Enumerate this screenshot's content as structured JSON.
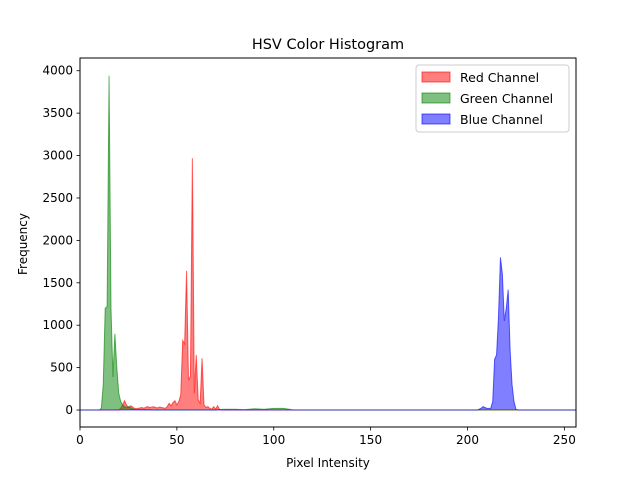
{
  "chart_data": {
    "type": "area",
    "title": "HSV Color Histogram",
    "xlabel": "Pixel Intensity",
    "ylabel": "Frequency",
    "xlim": [
      0,
      256
    ],
    "ylim": [
      -200,
      4150
    ],
    "xticks": [
      0,
      50,
      100,
      150,
      200,
      250
    ],
    "yticks": [
      0,
      500,
      1000,
      1500,
      2000,
      2500,
      3000,
      3500,
      4000
    ],
    "legend_position": "top-right",
    "series": [
      {
        "name": "Red Channel",
        "color": "#ff0000",
        "points": [
          [
            0,
            0
          ],
          [
            20,
            0
          ],
          [
            21,
            20
          ],
          [
            22,
            60
          ],
          [
            23,
            110
          ],
          [
            24,
            60
          ],
          [
            25,
            30
          ],
          [
            26,
            50
          ],
          [
            27,
            40
          ],
          [
            28,
            20
          ],
          [
            29,
            15
          ],
          [
            30,
            20
          ],
          [
            31,
            25
          ],
          [
            32,
            30
          ],
          [
            33,
            20
          ],
          [
            34,
            35
          ],
          [
            35,
            40
          ],
          [
            36,
            30
          ],
          [
            37,
            35
          ],
          [
            38,
            40
          ],
          [
            39,
            30
          ],
          [
            40,
            25
          ],
          [
            41,
            35
          ],
          [
            42,
            30
          ],
          [
            43,
            25
          ],
          [
            44,
            20
          ],
          [
            45,
            40
          ],
          [
            46,
            80
          ],
          [
            47,
            50
          ],
          [
            48,
            90
          ],
          [
            49,
            110
          ],
          [
            50,
            60
          ],
          [
            51,
            100
          ],
          [
            52,
            180
          ],
          [
            53,
            820
          ],
          [
            54,
            780
          ],
          [
            55,
            1640
          ],
          [
            56,
            350
          ],
          [
            57,
            400
          ],
          [
            58,
            2970
          ],
          [
            59,
            200
          ],
          [
            60,
            650
          ],
          [
            61,
            120
          ],
          [
            62,
            80
          ],
          [
            63,
            610
          ],
          [
            64,
            60
          ],
          [
            65,
            30
          ],
          [
            66,
            40
          ],
          [
            67,
            20
          ],
          [
            68,
            10
          ],
          [
            69,
            40
          ],
          [
            70,
            10
          ],
          [
            71,
            50
          ],
          [
            72,
            10
          ],
          [
            73,
            0
          ],
          [
            256,
            0
          ]
        ]
      },
      {
        "name": "Green Channel",
        "color": "#008000",
        "points": [
          [
            0,
            0
          ],
          [
            10,
            0
          ],
          [
            11,
            20
          ],
          [
            12,
            300
          ],
          [
            13,
            1200
          ],
          [
            14,
            1220
          ],
          [
            15,
            3940
          ],
          [
            16,
            1200
          ],
          [
            17,
            390
          ],
          [
            18,
            900
          ],
          [
            19,
            500
          ],
          [
            20,
            200
          ],
          [
            21,
            100
          ],
          [
            22,
            60
          ],
          [
            23,
            40
          ],
          [
            24,
            30
          ],
          [
            25,
            40
          ],
          [
            26,
            30
          ],
          [
            27,
            15
          ],
          [
            28,
            10
          ],
          [
            29,
            8
          ],
          [
            30,
            5
          ],
          [
            36,
            5
          ],
          [
            37,
            0
          ],
          [
            70,
            0
          ],
          [
            74,
            10
          ],
          [
            80,
            10
          ],
          [
            85,
            5
          ],
          [
            90,
            15
          ],
          [
            95,
            10
          ],
          [
            100,
            20
          ],
          [
            105,
            20
          ],
          [
            108,
            10
          ],
          [
            110,
            0
          ],
          [
            256,
            0
          ]
        ]
      },
      {
        "name": "Blue Channel",
        "color": "#0000ff",
        "points": [
          [
            0,
            0
          ],
          [
            205,
            0
          ],
          [
            207,
            20
          ],
          [
            208,
            40
          ],
          [
            209,
            30
          ],
          [
            210,
            20
          ],
          [
            212,
            20
          ],
          [
            213,
            100
          ],
          [
            214,
            600
          ],
          [
            215,
            650
          ],
          [
            216,
            1100
          ],
          [
            217,
            1800
          ],
          [
            218,
            1600
          ],
          [
            219,
            1050
          ],
          [
            220,
            1200
          ],
          [
            221,
            1420
          ],
          [
            222,
            700
          ],
          [
            223,
            300
          ],
          [
            224,
            100
          ],
          [
            225,
            10
          ],
          [
            226,
            0
          ],
          [
            256,
            0
          ]
        ]
      }
    ]
  }
}
